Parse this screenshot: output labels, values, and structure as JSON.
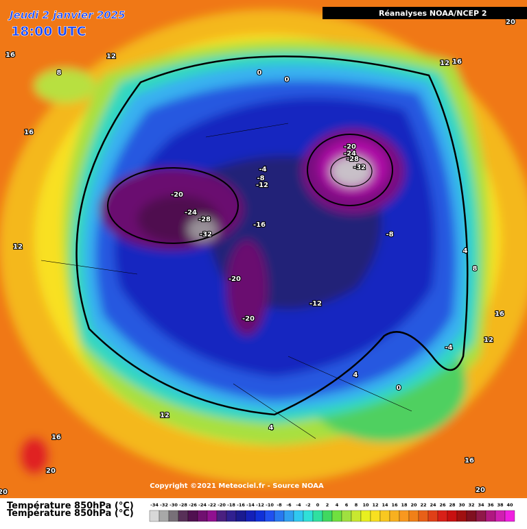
{
  "header": {
    "title": "Jeudi 2 janvier 2025",
    "time": "18:00 UTC",
    "source": "Réanalyses NOAA/NCEP 2"
  },
  "map": {
    "contour_labels": [
      "16",
      "12",
      "8",
      "16",
      "0",
      "0",
      "12",
      "16",
      "20",
      "-20",
      "-24",
      "-28",
      "-32",
      "-4",
      "-8",
      "-12",
      "-20",
      "-24",
      "-28",
      "-32",
      "-16",
      "-8",
      "12",
      "4",
      "8",
      "-20",
      "-12",
      "-20",
      "16",
      "12",
      "-4",
      "4",
      "0",
      "12",
      "4",
      "16",
      "20",
      "16",
      "20",
      "20"
    ]
  },
  "footer": {
    "copyright": "Copyright ©2021 Meteociel.fr - Source NOAA"
  },
  "legend": {
    "title": "Température 850hPa (°C)",
    "scale": [
      -34,
      -32,
      -30,
      -28,
      -26,
      -24,
      -22,
      -20,
      -18,
      -16,
      -14,
      -12,
      -10,
      -8,
      -6,
      -4,
      -2,
      0,
      2,
      4,
      6,
      8,
      10,
      12,
      14,
      16,
      18,
      20,
      22,
      24,
      26,
      28,
      30,
      32,
      34,
      36,
      38,
      40
    ]
  }
}
